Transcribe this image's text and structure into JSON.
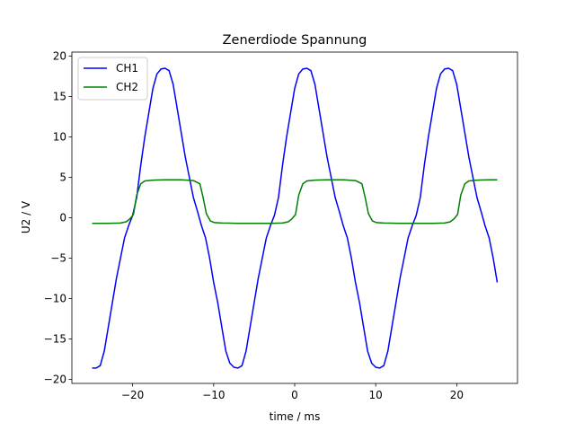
{
  "chart_data": {
    "type": "line",
    "title": "Zenerdiode Spannung",
    "xlabel": "time / ms",
    "ylabel": "U2 / V",
    "xlim": [
      -27.5,
      27.5
    ],
    "ylim": [
      -20.5,
      20.5
    ],
    "xticks": [
      -20,
      -10,
      0,
      10,
      20
    ],
    "yticks": [
      -20,
      -15,
      -10,
      -5,
      0,
      5,
      10,
      15,
      20
    ],
    "xtick_labels": [
      "−20",
      "−10",
      "0",
      "10",
      "20"
    ],
    "ytick_labels": [
      "−20",
      "−15",
      "−10",
      "−5",
      "0",
      "5",
      "10",
      "15",
      "20"
    ],
    "grid": false,
    "legend": "upper-left",
    "series": [
      {
        "name": "CH1",
        "color": "#0000ff",
        "x": [
          -25,
          -24.5,
          -24.0,
          -23.5,
          -23.0,
          -22.5,
          -22.0,
          -21.5,
          -21.0,
          -20.5,
          -20.0,
          -19.5,
          -19.0,
          -18.5,
          -18.0,
          -17.5,
          -17.0,
          -16.5,
          -16.0,
          -15.5,
          -15.0,
          -14.5,
          -14.0,
          -13.5,
          -13.0,
          -12.5,
          -12.0,
          -11.5,
          -11.0,
          -10.5,
          -10.0,
          -9.5,
          -9.0,
          -8.5,
          -8.0,
          -7.5,
          -7.0,
          -6.5,
          -6.0,
          -5.5,
          -5.0,
          -4.5,
          -4.0,
          -3.5,
          -3.0,
          -2.5,
          -2.0,
          -1.5,
          -1.0,
          -0.5,
          0.0,
          0.5,
          1.0,
          1.5,
          2.0,
          2.5,
          3.0,
          3.5,
          4.0,
          4.5,
          5.0,
          5.5,
          6.0,
          6.5,
          7.0,
          7.5,
          8.0,
          8.5,
          9.0,
          9.5,
          10.0,
          10.5,
          11.0,
          11.5,
          12.0,
          12.5,
          13.0,
          13.5,
          14.0,
          14.5,
          15.0,
          15.5,
          16.0,
          16.5,
          17.0,
          17.5,
          18.0,
          18.5,
          19.0,
          19.5,
          20.0,
          20.5,
          21.0,
          21.5,
          22.0,
          22.5,
          23.0,
          23.5,
          24.0,
          24.5,
          25.0
        ],
        "y": [
          -18.6,
          -18.6,
          -18.3,
          -16.5,
          -13.5,
          -10.5,
          -7.5,
          -5.0,
          -2.5,
          -1.0,
          0.3,
          2.5,
          6.5,
          10.0,
          13.0,
          16.0,
          17.8,
          18.4,
          18.5,
          18.2,
          16.5,
          13.5,
          10.5,
          7.5,
          5.0,
          2.5,
          0.8,
          -1.0,
          -2.5,
          -5.0,
          -8.0,
          -10.5,
          -13.5,
          -16.5,
          -18.0,
          -18.5,
          -18.6,
          -18.3,
          -16.5,
          -13.5,
          -10.5,
          -7.5,
          -5.0,
          -2.5,
          -1.0,
          0.3,
          2.5,
          6.5,
          10.0,
          13.0,
          16.0,
          17.8,
          18.4,
          18.5,
          18.2,
          16.5,
          13.5,
          10.5,
          7.5,
          5.0,
          2.5,
          0.8,
          -1.0,
          -2.5,
          -5.0,
          -8.0,
          -10.5,
          -13.5,
          -16.5,
          -18.0,
          -18.5,
          -18.6,
          -18.3,
          -16.5,
          -13.5,
          -10.5,
          -7.5,
          -5.0,
          -2.5,
          -1.0,
          0.3,
          2.5,
          6.5,
          10.0,
          13.0,
          16.0,
          17.8,
          18.4,
          18.5,
          18.2,
          16.5,
          13.5,
          10.5,
          7.5,
          5.0,
          2.5,
          0.8,
          -1.0,
          -2.5,
          -5.0,
          -8.0
        ]
      },
      {
        "name": "CH2",
        "color": "#008000",
        "x": [
          -25.0,
          -23.0,
          -21.5,
          -20.8,
          -20.3,
          -19.9,
          -19.5,
          -19.0,
          -18.5,
          -17.5,
          -16.0,
          -14.0,
          -12.5,
          -11.7,
          -11.3,
          -10.9,
          -10.4,
          -9.9,
          -9.0,
          -7.0,
          -5.0,
          -3.0,
          -1.5,
          -0.8,
          -0.3,
          0.1,
          0.5,
          1.0,
          1.5,
          2.5,
          4.0,
          6.0,
          7.5,
          8.3,
          8.7,
          9.1,
          9.6,
          10.1,
          11.0,
          13.0,
          15.0,
          17.0,
          18.5,
          19.2,
          19.7,
          20.1,
          20.5,
          21.0,
          21.5,
          22.5,
          24.0,
          25.0
        ],
        "y": [
          -0.7,
          -0.7,
          -0.65,
          -0.5,
          -0.1,
          0.4,
          2.8,
          4.2,
          4.55,
          4.65,
          4.7,
          4.7,
          4.6,
          4.2,
          2.5,
          0.5,
          -0.4,
          -0.6,
          -0.65,
          -0.7,
          -0.7,
          -0.7,
          -0.65,
          -0.5,
          -0.1,
          0.4,
          2.8,
          4.2,
          4.55,
          4.65,
          4.7,
          4.7,
          4.6,
          4.2,
          2.5,
          0.5,
          -0.4,
          -0.6,
          -0.65,
          -0.7,
          -0.7,
          -0.7,
          -0.65,
          -0.5,
          -0.1,
          0.4,
          2.8,
          4.2,
          4.55,
          4.65,
          4.7,
          4.7
        ]
      }
    ]
  }
}
